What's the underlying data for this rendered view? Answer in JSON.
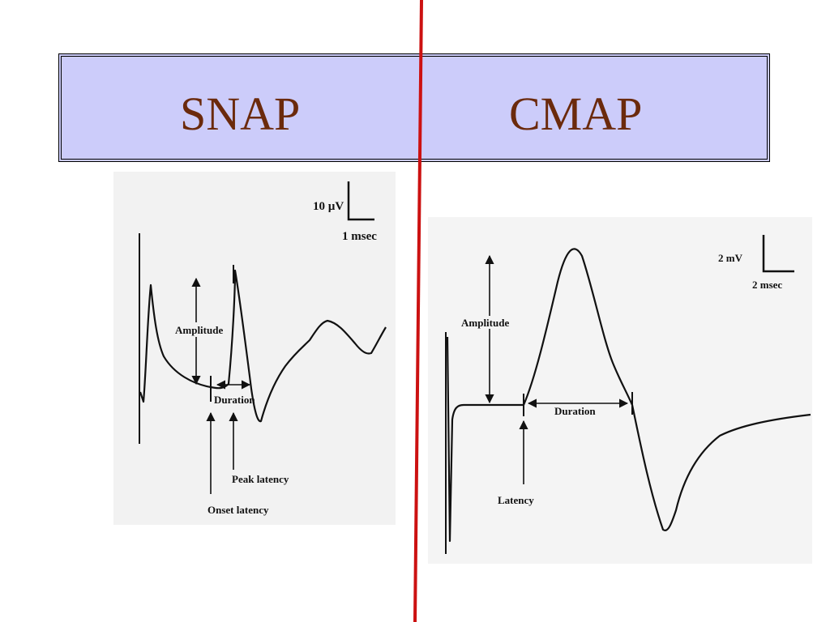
{
  "banner": {
    "left_title": "SNAP",
    "right_title": "CMAP",
    "background_color": "#ccccfa",
    "title_color": "#6b2a0c"
  },
  "divider_color": "#cc1111",
  "snap": {
    "scale_voltage": "10 µV",
    "scale_time": "1 msec",
    "amplitude_label": "Amplitude",
    "duration_label": "Duration",
    "peak_latency_label": "Peak latency",
    "onset_latency_label": "Onset latency"
  },
  "cmap": {
    "scale_voltage": "2 mV",
    "scale_time": "2 msec",
    "amplitude_label": "Amplitude",
    "duration_label": "Duration",
    "latency_label": "Latency"
  }
}
